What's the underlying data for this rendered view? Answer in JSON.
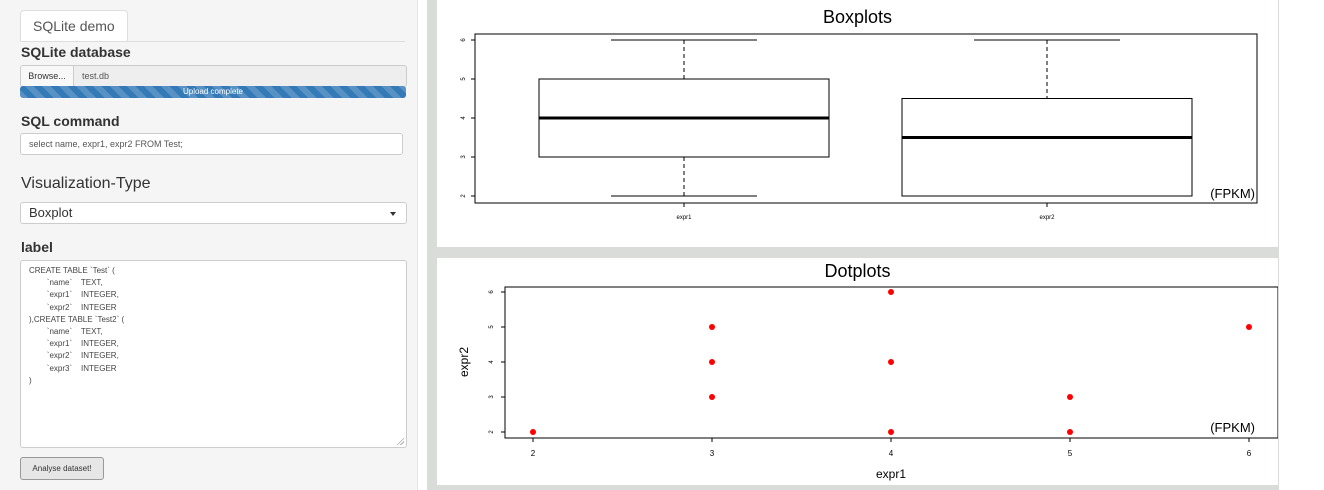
{
  "sidebar": {
    "tab": "SQLite demo",
    "db_label": "SQLite database",
    "browse": "Browse...",
    "filename": "test.db",
    "progress_text": "Upload complete",
    "progress": 1.0,
    "sql_label": "SQL command",
    "sql_value": "select name, expr1, expr2 FROM Test;",
    "viz_label": "Visualization-Type",
    "viz_value": "Boxplot",
    "label_title": "label",
    "label_text": "CREATE TABLE `Test` (\n        `name`    TEXT,\n        `expr1`    INTEGER,\n        `expr2`    INTEGER\n),CREATE TABLE `Test2` (\n        `name`    TEXT,\n        `expr1`    INTEGER,\n        `expr2`    INTEGER,\n        `expr3`    INTEGER\n)",
    "button": "Analyse dataset!"
  },
  "colors": {
    "accent": "#337ab7",
    "dot": "#ff0000"
  },
  "chart_data": [
    {
      "type": "box",
      "title": "Boxplots",
      "unit_note": "(FPKM)",
      "ylim": [
        2,
        6
      ],
      "yticks": [
        "2",
        "3",
        "4",
        "5",
        "6"
      ],
      "series": [
        {
          "name": "expr1",
          "min": 2,
          "q1": 3,
          "median": 4,
          "q3": 5,
          "max": 6
        },
        {
          "name": "expr2",
          "min": 2,
          "q1": 2,
          "median": 3.5,
          "q3": 4.5,
          "max": 6
        }
      ]
    },
    {
      "type": "scatter",
      "title": "Dotplots",
      "unit_note": "(FPKM)",
      "xlabel": "expr1",
      "ylabel": "expr2",
      "xlim": [
        2,
        6
      ],
      "ylim": [
        2,
        6
      ],
      "xticks": [
        "2",
        "3",
        "4",
        "5",
        "6"
      ],
      "yticks": [
        "2",
        "3",
        "4",
        "5",
        "6"
      ],
      "points": [
        {
          "x": 2,
          "y": 2
        },
        {
          "x": 3,
          "y": 3
        },
        {
          "x": 3,
          "y": 4
        },
        {
          "x": 3,
          "y": 5
        },
        {
          "x": 4,
          "y": 2
        },
        {
          "x": 4,
          "y": 4
        },
        {
          "x": 4,
          "y": 6
        },
        {
          "x": 5,
          "y": 2
        },
        {
          "x": 5,
          "y": 3
        },
        {
          "x": 6,
          "y": 5
        }
      ]
    }
  ]
}
